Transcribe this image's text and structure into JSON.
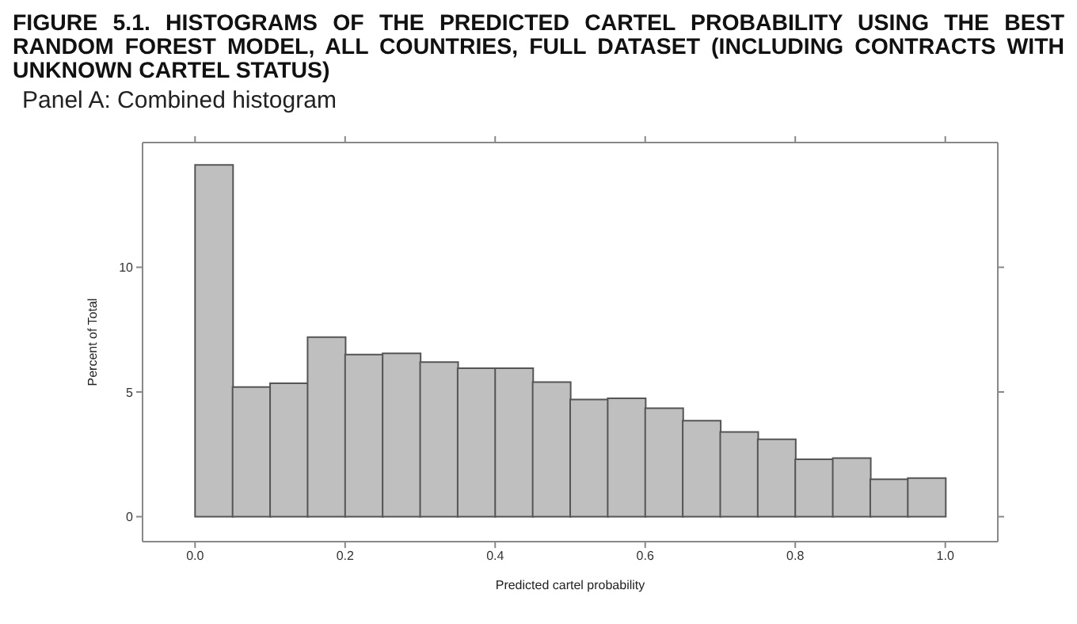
{
  "chart_data": {
    "type": "histogram",
    "title": "FIGURE 5.1. HISTOGRAMS OF THE PREDICTED CARTEL PROBABILITY USING THE BEST RANDOM FOREST MODEL, ALL COUNTRIES, FULL DATASET (INCLUDING CONTRACTS WITH UNKNOWN CARTEL STATUS)",
    "subtitle": "Panel A: Combined histogram",
    "xlabel": "Predicted cartel probability",
    "ylabel": "Percent of Total",
    "bins": [
      0,
      0.05,
      0.1,
      0.15,
      0.2,
      0.25,
      0.3,
      0.35,
      0.4,
      0.45,
      0.5,
      0.55,
      0.6,
      0.65,
      0.7,
      0.75,
      0.8,
      0.85,
      0.9,
      0.95,
      1.0
    ],
    "values": [
      14.1,
      5.2,
      5.35,
      7.2,
      6.5,
      6.55,
      6.2,
      5.95,
      5.95,
      5.4,
      4.7,
      4.75,
      4.35,
      3.85,
      3.4,
      3.1,
      2.3,
      2.35,
      1.5,
      1.55
    ],
    "color": "#bfbfbf",
    "xlim": [
      -0.07,
      1.07
    ],
    "xticks": [
      {
        "value": 0,
        "label": "0.0"
      },
      0.2,
      0.4,
      0.6,
      0.8,
      {
        "value": 1,
        "label": "1.0"
      }
    ],
    "ylim": [
      -1,
      15
    ],
    "yticks": [
      0,
      5,
      10
    ],
    "grid": false
  }
}
